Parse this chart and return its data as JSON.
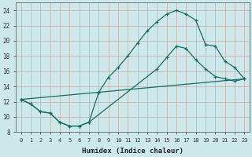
{
  "xlabel": "Humidex (Indice chaleur)",
  "ylabel": "",
  "xlim": [
    -0.5,
    23.5
  ],
  "ylim": [
    8,
    25
  ],
  "yticks": [
    8,
    10,
    12,
    14,
    16,
    18,
    20,
    22,
    24
  ],
  "xticks": [
    0,
    1,
    2,
    3,
    4,
    5,
    6,
    7,
    8,
    9,
    10,
    11,
    12,
    13,
    14,
    15,
    16,
    17,
    18,
    19,
    20,
    21,
    22,
    23
  ],
  "bg_color": "#cce8ea",
  "grid_color": "#b8d8da",
  "line_color": "#1a6b60",
  "line1_x": [
    0,
    1,
    2,
    3,
    4,
    5,
    6,
    7,
    8,
    9,
    10,
    11,
    12,
    13,
    14,
    15,
    16,
    17,
    18,
    19,
    20,
    21,
    22,
    23
  ],
  "line1_y": [
    12.3,
    11.7,
    10.7,
    10.5,
    9.3,
    8.8,
    8.8,
    9.3,
    13.2,
    15.2,
    16.5,
    18.0,
    19.7,
    21.3,
    22.5,
    23.5,
    24.0,
    23.5,
    22.7,
    19.5,
    19.3,
    17.3,
    16.5,
    15.0
  ],
  "line2_x": [
    0,
    1,
    2,
    3,
    4,
    5,
    6,
    7,
    14,
    15,
    16,
    17,
    18,
    19,
    20,
    21,
    22,
    23
  ],
  "line2_y": [
    12.3,
    11.7,
    10.7,
    10.5,
    9.3,
    8.8,
    8.8,
    9.3,
    16.3,
    17.8,
    19.3,
    19.0,
    17.5,
    16.3,
    15.3,
    15.0,
    14.7,
    15.0
  ],
  "line3_x": [
    0,
    23
  ],
  "line3_y": [
    12.3,
    15.0
  ]
}
